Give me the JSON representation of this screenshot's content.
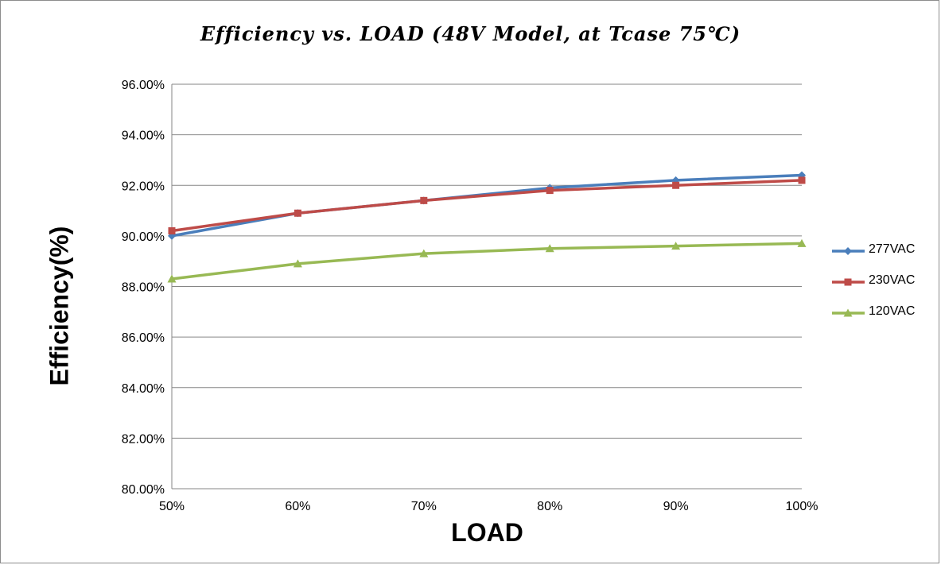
{
  "chart_data": {
    "type": "line",
    "title": "Efficiency vs. LOAD (48V Model, at Tcase 75℃)",
    "xlabel": "LOAD",
    "ylabel": "Efficiency(%)",
    "categories": [
      "50%",
      "60%",
      "70%",
      "80%",
      "90%",
      "100%"
    ],
    "y_ticks": [
      "80.00%",
      "82.00%",
      "84.00%",
      "86.00%",
      "88.00%",
      "90.00%",
      "92.00%",
      "94.00%",
      "96.00%"
    ],
    "ylim": [
      80,
      96
    ],
    "grid": "horizontal",
    "legend": "right",
    "series": [
      {
        "name": "277VAC",
        "color": "#4a7ebb",
        "marker": "diamond",
        "values": [
          90.0,
          90.9,
          91.4,
          91.9,
          92.2,
          92.4
        ]
      },
      {
        "name": "230VAC",
        "color": "#be4b48",
        "marker": "square",
        "values": [
          90.2,
          90.9,
          91.4,
          91.8,
          92.0,
          92.2
        ]
      },
      {
        "name": "120VAC",
        "color": "#98b954",
        "marker": "triangle",
        "values": [
          88.3,
          88.9,
          89.3,
          89.5,
          89.6,
          89.7
        ]
      }
    ]
  }
}
